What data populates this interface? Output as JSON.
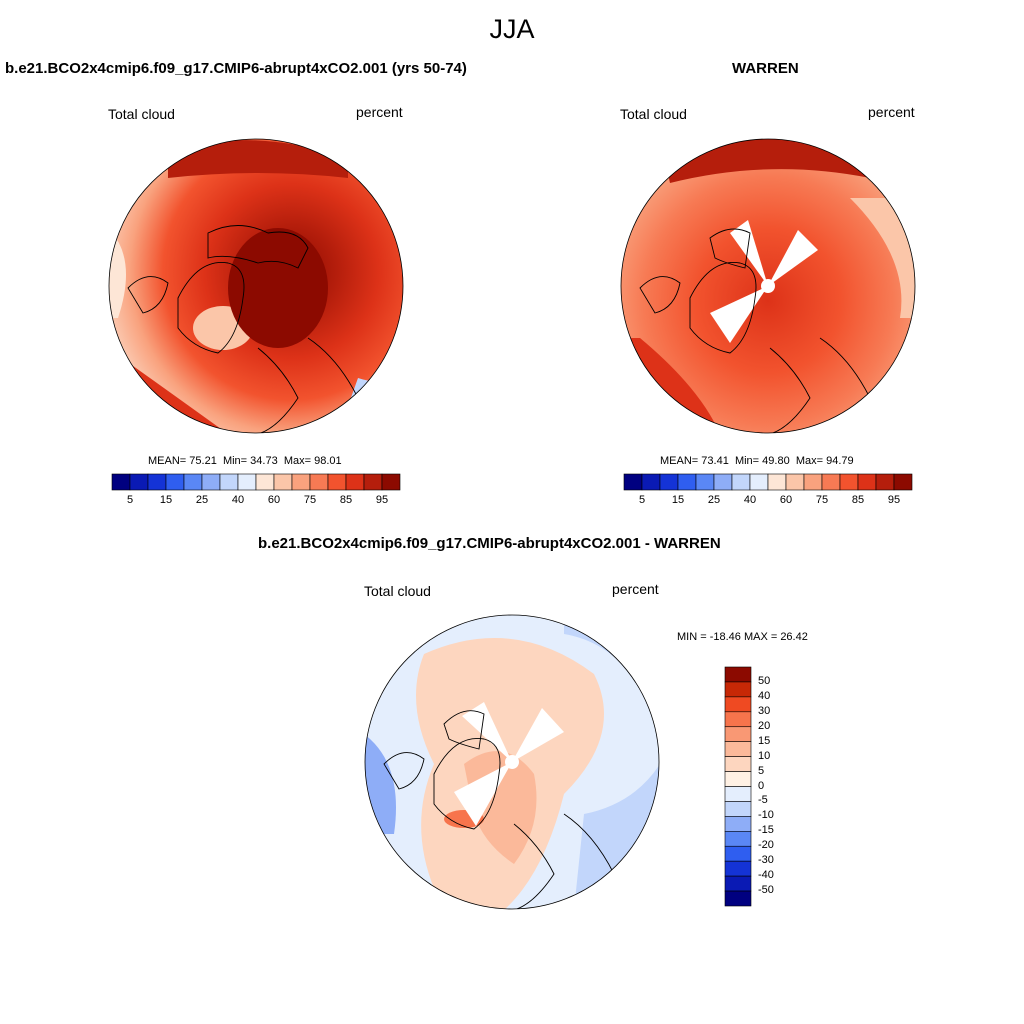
{
  "season": "JJA",
  "colors": {
    "test": [
      "#000080",
      "#0a1ab4",
      "#1433d6",
      "#2f5ef0",
      "#5a87f5",
      "#8eadf7",
      "#c2d6fb",
      "#e4eefd",
      "#fde6d6",
      "#fbc6a9",
      "#f9a27e",
      "#f77a54",
      "#f2532e",
      "#dd3218",
      "#b51e0c",
      "#8c0a00"
    ],
    "diff": [
      "#000080",
      "#0a1ab4",
      "#1433d6",
      "#2f5ef0",
      "#5a87f5",
      "#8eadf7",
      "#c2d6fb",
      "#e4eefd",
      "#fff1e4",
      "#fdd6bf",
      "#fbb99a",
      "#f99874",
      "#f7744c",
      "#ef4a22",
      "#c72806",
      "#8c0a00"
    ]
  },
  "panels": {
    "left": {
      "title": "b.e21.BCO2x4cmip6.f09_g17.CMIP6-abrupt4xCO2.001 (yrs 50-74)",
      "variable": "Total cloud",
      "units": "percent",
      "mean_label": "MEAN=",
      "mean": "75.21",
      "min_label": "Min=",
      "min": "34.73",
      "max_label": "Max=",
      "max": "98.01",
      "mean_value": 75.21
    },
    "right": {
      "title": "WARREN",
      "variable": "Total cloud",
      "units": "percent",
      "mean_label": "MEAN=",
      "mean": "73.41",
      "min_label": "Min=",
      "min": "49.80",
      "max_label": "Max=",
      "max": "94.79",
      "mean_value": 73.41
    },
    "diff": {
      "title": "b.e21.BCO2x4cmip6.f09_g17.CMIP6-abrupt4xCO2.001 - WARREN",
      "variable": "Total cloud",
      "units": "percent",
      "minmax_text": "MIN = -18.46 MAX =  26.42"
    }
  },
  "colorbar_test": {
    "labels": [
      "5",
      "15",
      "25",
      "40",
      "60",
      "75",
      "85",
      "95"
    ]
  },
  "colorbar_diff": {
    "labels": [
      "50",
      "40",
      "30",
      "20",
      "15",
      "10",
      "5",
      "0",
      "-5",
      "-10",
      "-15",
      "-20",
      "-30",
      "-40",
      "-50"
    ]
  }
}
